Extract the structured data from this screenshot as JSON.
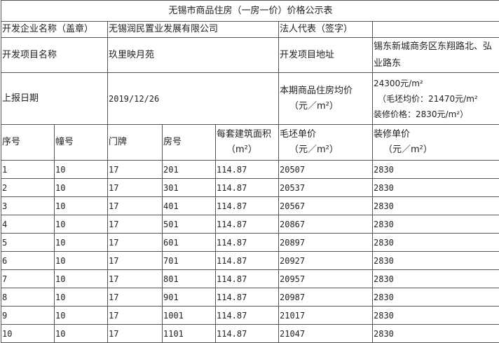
{
  "title": "无锡市商品住房（一房一价）价格公示表",
  "info": {
    "developer_label": "开发企业名称（盖章）",
    "developer_value": "无锡润民置业发展有限公司",
    "legal_rep_label": "法人代表（签字）",
    "legal_rep_value": "",
    "project_label": "开发项目名称",
    "project_value": "玖里映月苑",
    "address_label": "开发项目地址",
    "address_value": "锡东新城商务区东翔路北、弘业路东",
    "date_label": "上报日期",
    "date_value": "2019/12/26",
    "avg_price_label": "本期商品住房均价",
    "avg_price_unit": "（元／m²）",
    "avg_price_line1": "24300元/m²",
    "avg_price_line2": "（毛坯均价：21470元/m²",
    "avg_price_line3": "装修价格：2830元/m²）"
  },
  "columns": [
    {
      "label": "序号",
      "unit": ""
    },
    {
      "label": "幢号",
      "unit": ""
    },
    {
      "label": "门牌",
      "unit": ""
    },
    {
      "label": "房号",
      "unit": ""
    },
    {
      "label": "每套建筑面积",
      "unit": "（m²）"
    },
    {
      "label": "毛坯单价",
      "unit": "（元／m²）"
    },
    {
      "label": "装修单价",
      "unit": "（元／m²）"
    }
  ],
  "rows": [
    [
      "1",
      "10",
      "17",
      "201",
      "114.87",
      "20507",
      "2830"
    ],
    [
      "2",
      "10",
      "17",
      "301",
      "114.87",
      "20537",
      "2830"
    ],
    [
      "3",
      "10",
      "17",
      "401",
      "114.87",
      "20567",
      "2830"
    ],
    [
      "4",
      "10",
      "17",
      "501",
      "114.87",
      "20867",
      "2830"
    ],
    [
      "5",
      "10",
      "17",
      "601",
      "114.87",
      "20897",
      "2830"
    ],
    [
      "6",
      "10",
      "17",
      "701",
      "114.87",
      "20927",
      "2830"
    ],
    [
      "7",
      "10",
      "17",
      "801",
      "114.87",
      "20957",
      "2830"
    ],
    [
      "8",
      "10",
      "17",
      "901",
      "114.87",
      "20987",
      "2830"
    ],
    [
      "9",
      "10",
      "17",
      "1001",
      "114.87",
      "21017",
      "2830"
    ],
    [
      "10",
      "10",
      "17",
      "1101",
      "114.87",
      "21047",
      "2830"
    ]
  ]
}
